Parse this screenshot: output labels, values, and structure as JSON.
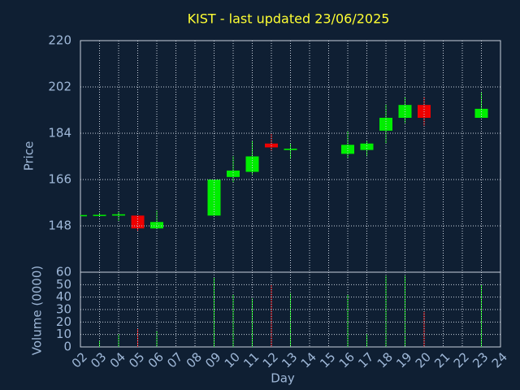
{
  "chart_data": {
    "type": "candlestick",
    "title": "KIST - last updated 23/06/2025",
    "ylabel": "Price",
    "y2label": "Volume (0000)",
    "xlabel": "Day",
    "categories": [
      "02",
      "03",
      "04",
      "05",
      "06",
      "07",
      "08",
      "09",
      "10",
      "11",
      "12",
      "13",
      "14",
      "15",
      "16",
      "17",
      "18",
      "19",
      "20",
      "21",
      "22",
      "23",
      "24"
    ],
    "open": [
      152,
      152,
      152,
      152,
      147,
      null,
      null,
      152,
      167,
      169,
      180,
      177.5,
      null,
      null,
      176,
      177.5,
      185,
      190,
      195,
      null,
      null,
      190,
      null
    ],
    "high": [
      152.5,
      153,
      153.5,
      152,
      154,
      null,
      null,
      166,
      175,
      181,
      184,
      180,
      null,
      null,
      185,
      181,
      195,
      198,
      198,
      null,
      null,
      200,
      null
    ],
    "low": [
      151.5,
      151.5,
      150,
      146,
      147,
      null,
      null,
      152,
      165,
      168,
      177,
      174,
      null,
      null,
      174.5,
      175,
      180,
      188,
      187,
      null,
      null,
      190,
      null
    ],
    "close": [
      152.2,
      152.3,
      152.5,
      147,
      149.5,
      null,
      null,
      166,
      169.5,
      175,
      178.5,
      178,
      null,
      null,
      179.5,
      180,
      190,
      195,
      190,
      null,
      null,
      193.5,
      null
    ],
    "volume": [
      null,
      5,
      10,
      15,
      13,
      null,
      null,
      56,
      42,
      39,
      50,
      43,
      null,
      null,
      42,
      10,
      57,
      57,
      28,
      null,
      null,
      50,
      null
    ],
    "up_color": "#00ee00",
    "down_color": "#ee0000",
    "ylim": [
      130,
      220
    ],
    "yticks": [
      148,
      166,
      184,
      202,
      220
    ],
    "y2lim": [
      0,
      60
    ],
    "y2ticks": [
      0,
      10,
      20,
      30,
      40,
      50,
      60
    ],
    "grid": true
  }
}
